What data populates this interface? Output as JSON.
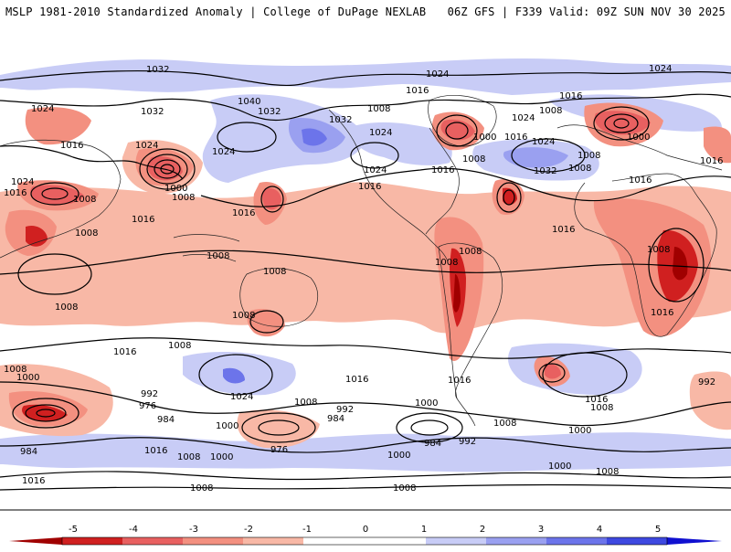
{
  "header": {
    "left_title": "MSLP 1981-2010 Standardized Anomaly | College of DuPage NEXLAB",
    "right_title": "06Z GFS | F339 Valid: 09Z SUN NOV 30 2025"
  },
  "colors": {
    "neg5": "#a00000",
    "neg4": "#d02020",
    "neg3": "#e86060",
    "neg2": "#f39080",
    "neg1": "#f8b8a6",
    "pos1": "#c8ccf6",
    "pos2": "#9aa0f0",
    "pos3": "#6c74ea",
    "pos4": "#3e48e0",
    "pos5": "#1010d0"
  },
  "colorbar": {
    "ticks": [
      "-5",
      "-4",
      "-3",
      "-2",
      "-1",
      "0",
      "1",
      "2",
      "3",
      "4",
      "5"
    ]
  },
  "contour_labels": [
    {
      "id": "l1032a",
      "text": "1032"
    },
    {
      "id": "l1024a",
      "text": "1024"
    },
    {
      "id": "l1024b",
      "text": "1024"
    },
    {
      "id": "l1016a",
      "text": "1016"
    },
    {
      "id": "l1024c",
      "text": "1024"
    },
    {
      "id": "l1032b",
      "text": "1032"
    },
    {
      "id": "l1040",
      "text": "1040"
    },
    {
      "id": "l1032c",
      "text": "1032"
    },
    {
      "id": "l1008a",
      "text": "1008"
    },
    {
      "id": "l1032d",
      "text": "1032"
    },
    {
      "id": "l1024d",
      "text": "1024"
    },
    {
      "id": "l1016b",
      "text": "1016"
    },
    {
      "id": "l1024e",
      "text": "1024"
    },
    {
      "id": "l1008b",
      "text": "1008"
    },
    {
      "id": "l1024f",
      "text": "1024"
    },
    {
      "id": "l1016c",
      "text": "1016"
    },
    {
      "id": "l1024g",
      "text": "1024"
    },
    {
      "id": "l1000a",
      "text": "1000"
    },
    {
      "id": "l1016d",
      "text": "1016"
    },
    {
      "id": "l1024h",
      "text": "1024"
    },
    {
      "id": "l1000b",
      "text": "1000"
    },
    {
      "id": "l1008c",
      "text": "1008"
    },
    {
      "id": "l1016e",
      "text": "1016"
    },
    {
      "id": "l1024i",
      "text": "1024"
    },
    {
      "id": "l1016f",
      "text": "1016"
    },
    {
      "id": "l1008d",
      "text": "1008"
    },
    {
      "id": "l1016g",
      "text": "1016"
    },
    {
      "id": "l1032e",
      "text": "1032"
    },
    {
      "id": "l1008e",
      "text": "1008"
    },
    {
      "id": "l1016h",
      "text": "1016"
    },
    {
      "id": "l1024j",
      "text": "1024"
    },
    {
      "id": "l1016i",
      "text": "1016"
    },
    {
      "id": "l1008f",
      "text": "1008"
    },
    {
      "id": "l1000c",
      "text": "1000"
    },
    {
      "id": "l1008g",
      "text": "1008"
    },
    {
      "id": "l1016j",
      "text": "1016"
    },
    {
      "id": "l1016k",
      "text": "1016"
    },
    {
      "id": "l1016l",
      "text": "1016"
    },
    {
      "id": "l1008h",
      "text": "1008"
    },
    {
      "id": "l1008i",
      "text": "1008"
    },
    {
      "id": "l1008j",
      "text": "1008"
    },
    {
      "id": "l1008k",
      "text": "1008"
    },
    {
      "id": "l1008l",
      "text": "1008"
    },
    {
      "id": "l1008m",
      "text": "1008"
    },
    {
      "id": "l1016m",
      "text": "1016"
    },
    {
      "id": "l1008n",
      "text": "1008"
    },
    {
      "id": "l1016n",
      "text": "1016"
    },
    {
      "id": "l1008o",
      "text": "1008"
    },
    {
      "id": "l1000d",
      "text": "1000"
    },
    {
      "id": "l1024k",
      "text": "1024"
    },
    {
      "id": "l1016o",
      "text": "1016"
    },
    {
      "id": "l1016p",
      "text": "1016"
    },
    {
      "id": "l1008p",
      "text": "1008"
    },
    {
      "id": "l992a",
      "text": "992"
    },
    {
      "id": "l976a",
      "text": "976"
    },
    {
      "id": "l984a",
      "text": "984"
    },
    {
      "id": "l1000e",
      "text": "1000"
    },
    {
      "id": "l1008q",
      "text": "1008"
    },
    {
      "id": "l992b",
      "text": "992"
    },
    {
      "id": "l984b",
      "text": "984"
    },
    {
      "id": "l1000f",
      "text": "1000"
    },
    {
      "id": "l976b",
      "text": "976"
    },
    {
      "id": "l1016q",
      "text": "1016"
    },
    {
      "id": "l1008r",
      "text": "1008"
    },
    {
      "id": "l1000g",
      "text": "1000"
    },
    {
      "id": "l984c",
      "text": "984"
    },
    {
      "id": "l1000h",
      "text": "1000"
    },
    {
      "id": "l984d",
      "text": "984"
    },
    {
      "id": "l992c",
      "text": "992"
    },
    {
      "id": "l1008s",
      "text": "1008"
    },
    {
      "id": "l1000i",
      "text": "1000"
    },
    {
      "id": "l1008t",
      "text": "1008"
    },
    {
      "id": "l1000j",
      "text": "1000"
    },
    {
      "id": "l1016r",
      "text": "1016"
    },
    {
      "id": "l1008u",
      "text": "1008"
    },
    {
      "id": "l992d",
      "text": "992"
    },
    {
      "id": "l1008v",
      "text": "1008"
    },
    {
      "id": "l1016s",
      "text": "1016"
    },
    {
      "id": "l1008w",
      "text": "1008"
    },
    {
      "id": "l1008x",
      "text": "1008"
    }
  ]
}
